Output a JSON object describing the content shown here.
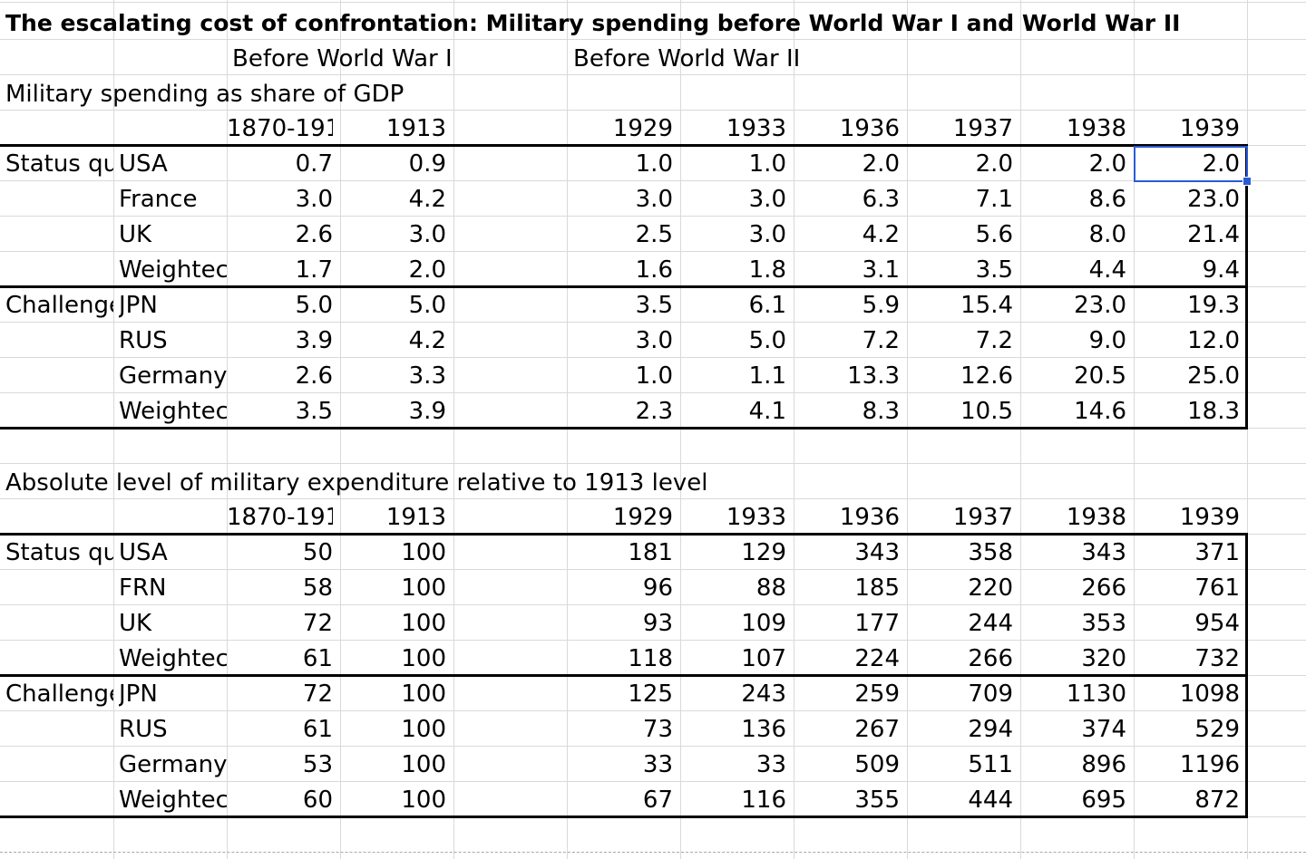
{
  "title": "The escalating cost of confrontation: Military spending before World War I and World War II",
  "group_headers": {
    "ww1": "Before World War I",
    "ww2": "Before World War II"
  },
  "columns": [
    "1870-191",
    "1913",
    "1929",
    "1933",
    "1936",
    "1937",
    "1938",
    "1939"
  ],
  "sections": [
    {
      "heading": "Military spending as share of GDP",
      "groups": [
        {
          "label": "Status qu",
          "rows": [
            {
              "name": "USA",
              "values": [
                "0.7",
                "0.9",
                "1.0",
                "1.0",
                "2.0",
                "2.0",
                "2.0",
                "2.0"
              ]
            },
            {
              "name": "France",
              "values": [
                "3.0",
                "4.2",
                "3.0",
                "3.0",
                "6.3",
                "7.1",
                "8.6",
                "23.0"
              ]
            },
            {
              "name": "UK",
              "values": [
                "2.6",
                "3.0",
                "2.5",
                "3.0",
                "4.2",
                "5.6",
                "8.0",
                "21.4"
              ]
            },
            {
              "name": "Weightec",
              "values": [
                "1.7",
                "2.0",
                "1.6",
                "1.8",
                "3.1",
                "3.5",
                "4.4",
                "9.4"
              ]
            }
          ]
        },
        {
          "label": "Challenge",
          "rows": [
            {
              "name": "JPN",
              "values": [
                "5.0",
                "5.0",
                "3.5",
                "6.1",
                "5.9",
                "15.4",
                "23.0",
                "19.3"
              ]
            },
            {
              "name": "RUS",
              "values": [
                "3.9",
                "4.2",
                "3.0",
                "5.0",
                "7.2",
                "7.2",
                "9.0",
                "12.0"
              ]
            },
            {
              "name": "Germany",
              "values": [
                "2.6",
                "3.3",
                "1.0",
                "1.1",
                "13.3",
                "12.6",
                "20.5",
                "25.0"
              ]
            },
            {
              "name": "Weightec",
              "values": [
                "3.5",
                "3.9",
                "2.3",
                "4.1",
                "8.3",
                "10.5",
                "14.6",
                "18.3"
              ]
            }
          ]
        }
      ]
    },
    {
      "heading": "Absolute level of military expenditure relative to 1913 level",
      "groups": [
        {
          "label": "Status qu",
          "rows": [
            {
              "name": "USA",
              "values": [
                "50",
                "100",
                "181",
                "129",
                "343",
                "358",
                "343",
                "371"
              ]
            },
            {
              "name": "FRN",
              "values": [
                "58",
                "100",
                "96",
                "88",
                "185",
                "220",
                "266",
                "761"
              ]
            },
            {
              "name": "UK",
              "values": [
                "72",
                "100",
                "93",
                "109",
                "177",
                "244",
                "353",
                "954"
              ]
            },
            {
              "name": "Weightec",
              "values": [
                "61",
                "100",
                "118",
                "107",
                "224",
                "266",
                "320",
                "732"
              ]
            }
          ]
        },
        {
          "label": "Challenge",
          "rows": [
            {
              "name": "JPN",
              "values": [
                "72",
                "100",
                "125",
                "243",
                "259",
                "709",
                "1130",
                "1098"
              ]
            },
            {
              "name": "RUS",
              "values": [
                "61",
                "100",
                "73",
                "136",
                "267",
                "294",
                "374",
                "529"
              ]
            },
            {
              "name": "Germany",
              "values": [
                "53",
                "100",
                "33",
                "33",
                "509",
                "511",
                "896",
                "1196"
              ]
            },
            {
              "name": "Weightec",
              "values": [
                "60",
                "100",
                "67",
                "116",
                "355",
                "444",
                "695",
                "872"
              ]
            }
          ]
        }
      ]
    }
  ],
  "colors": {
    "grid": "#d9d9d9",
    "border": "#000000",
    "selection": "#2a5bd7"
  }
}
